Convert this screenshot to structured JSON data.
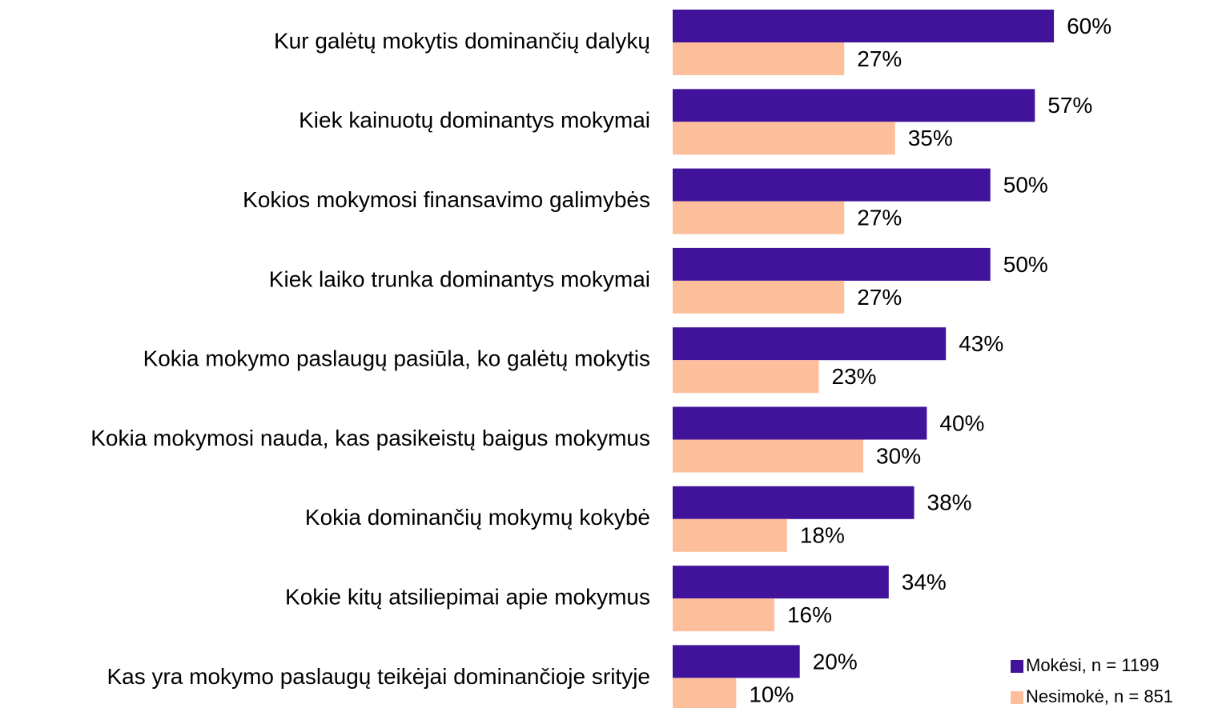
{
  "chart_data": {
    "type": "bar",
    "orientation": "horizontal",
    "categories": [
      "Kur galėtų mokytis dominančių dalykų",
      "Kiek kainuotų dominantys mokymai",
      "Kokios mokymosi finansavimo galimybės",
      "Kiek laiko trunka dominantys mokymai",
      "Kokia mokymo paslaugų pasiūla, ko galėtų mokytis",
      "Kokia mokymosi nauda, kas pasikeistų baigus mokymus",
      "Kokia dominančių mokymų kokybė",
      "Kokie kitų atsiliepimai apie mokymus",
      "Kas yra mokymo paslaugų teikėjai dominančioje srityje"
    ],
    "series": [
      {
        "name": "Mokėsi, n = 1199",
        "color": "#40139a",
        "values": [
          60,
          57,
          50,
          50,
          43,
          40,
          38,
          34,
          20
        ],
        "value_labels": [
          "60%",
          "57%",
          "50%",
          "50%",
          "43%",
          "40%",
          "38%",
          "34%",
          "20%"
        ]
      },
      {
        "name": "Nesimokė, n = 851",
        "color": "#fdbf9b",
        "values": [
          27,
          35,
          27,
          27,
          23,
          30,
          18,
          16,
          10
        ],
        "value_labels": [
          "27%",
          "35%",
          "27%",
          "27%",
          "23%",
          "30%",
          "18%",
          "16%",
          "10%"
        ]
      }
    ],
    "legend": "bottom-right"
  }
}
